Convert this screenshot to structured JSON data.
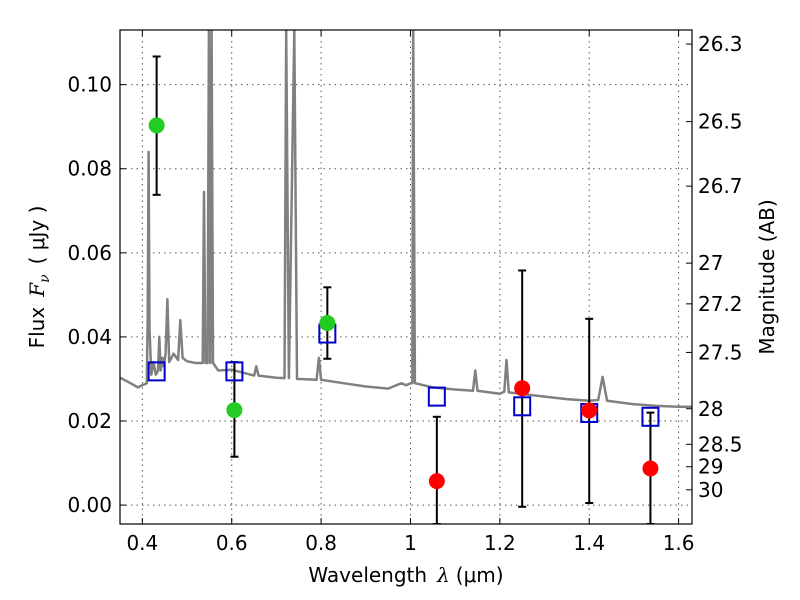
{
  "chart_data": {
    "type": "scatter",
    "xlabel_prefix": "Wavelength",
    "xlabel_unit": "(μm)",
    "ylabel_left_prefix": "Flux",
    "ylabel_left_unit": "( μJy )",
    "ylabel_right": "Magnitude (AB)",
    "xlim": [
      0.35,
      1.63
    ],
    "ylim": [
      -0.0045,
      0.113
    ],
    "x_ticks": [
      0.4,
      0.6,
      0.8,
      1.0,
      1.2,
      1.4,
      1.6
    ],
    "x_tick_labels": [
      "0.4",
      "0.6",
      "0.8",
      "1",
      "1.2",
      "1.4",
      "1.6"
    ],
    "y_ticks": [
      0.0,
      0.02,
      0.04,
      0.06,
      0.08,
      0.1
    ],
    "y_tick_labels": [
      "0.00",
      "0.02",
      "0.04",
      "0.06",
      "0.08",
      "0.10"
    ],
    "right_ticks": [
      {
        "label": "26.3",
        "mag": 26.3
      },
      {
        "label": "26.5",
        "mag": 26.5
      },
      {
        "label": "26.7",
        "mag": 26.7
      },
      {
        "label": "27",
        "mag": 27.0
      },
      {
        "label": "27.2",
        "mag": 27.2
      },
      {
        "label": "27.5",
        "mag": 27.5
      },
      {
        "label": "28",
        "mag": 28.0
      },
      {
        "label": "28.5",
        "mag": 28.5
      },
      {
        "label": "29",
        "mag": 29.0
      },
      {
        "label": "30",
        "mag": 30.0
      }
    ],
    "grid": true,
    "colors": {
      "spectrum": "#808080",
      "detection": "#22cc22",
      "upper": "#ff0000",
      "model": "#0000cc",
      "errorbar": "#000000"
    },
    "observed_points": [
      {
        "x": 0.432,
        "y": 0.0903,
        "err_low": 0.0738,
        "err_high": 0.1067,
        "kind": "detection"
      },
      {
        "x": 0.606,
        "y": 0.0226,
        "err_low": 0.0115,
        "err_high": 0.034,
        "kind": "detection"
      },
      {
        "x": 0.814,
        "y": 0.0433,
        "err_low": 0.0348,
        "err_high": 0.0518,
        "kind": "detection"
      },
      {
        "x": 1.059,
        "y": 0.0057,
        "err_low": -0.0045,
        "err_high": 0.021,
        "kind": "upper"
      },
      {
        "x": 1.25,
        "y": 0.0278,
        "err_low": -0.0004,
        "err_high": 0.0558,
        "kind": "upper"
      },
      {
        "x": 1.4,
        "y": 0.0225,
        "err_low": 0.0005,
        "err_high": 0.0443,
        "kind": "upper"
      },
      {
        "x": 1.537,
        "y": 0.0087,
        "err_low": -0.0045,
        "err_high": 0.022,
        "kind": "upper"
      }
    ],
    "model_points": [
      {
        "x": 0.432,
        "y": 0.0318
      },
      {
        "x": 0.606,
        "y": 0.0318
      },
      {
        "x": 0.814,
        "y": 0.0408
      },
      {
        "x": 1.059,
        "y": 0.0258
      },
      {
        "x": 1.25,
        "y": 0.0235
      },
      {
        "x": 1.4,
        "y": 0.0219
      },
      {
        "x": 1.537,
        "y": 0.021
      }
    ],
    "spectrum": [
      [
        0.35,
        0.0303
      ],
      [
        0.37,
        0.0292
      ],
      [
        0.39,
        0.028
      ],
      [
        0.4,
        0.0285
      ],
      [
        0.41,
        0.029
      ],
      [
        0.412,
        0.045
      ],
      [
        0.414,
        0.084
      ],
      [
        0.416,
        0.042
      ],
      [
        0.42,
        0.031
      ],
      [
        0.425,
        0.034
      ],
      [
        0.43,
        0.031
      ],
      [
        0.435,
        0.032
      ],
      [
        0.438,
        0.04
      ],
      [
        0.441,
        0.032
      ],
      [
        0.445,
        0.035
      ],
      [
        0.448,
        0.033
      ],
      [
        0.452,
        0.036
      ],
      [
        0.456,
        0.049
      ],
      [
        0.46,
        0.034
      ],
      [
        0.47,
        0.036
      ],
      [
        0.48,
        0.0345
      ],
      [
        0.485,
        0.044
      ],
      [
        0.49,
        0.035
      ],
      [
        0.5,
        0.0342
      ],
      [
        0.52,
        0.0338
      ],
      [
        0.535,
        0.0338
      ],
      [
        0.538,
        0.0745
      ],
      [
        0.541,
        0.0338
      ],
      [
        0.546,
        0.0338
      ],
      [
        0.549,
        0.113
      ],
      [
        0.552,
        0.0338
      ],
      [
        0.555,
        0.113
      ],
      [
        0.558,
        0.0338
      ],
      [
        0.57,
        0.032
      ],
      [
        0.6,
        0.0322
      ],
      [
        0.65,
        0.0308
      ],
      [
        0.655,
        0.033
      ],
      [
        0.66,
        0.0308
      ],
      [
        0.7,
        0.0303
      ],
      [
        0.718,
        0.0302
      ],
      [
        0.722,
        0.113
      ],
      [
        0.728,
        0.0302
      ],
      [
        0.74,
        0.113
      ],
      [
        0.746,
        0.03
      ],
      [
        0.75,
        0.03
      ],
      [
        0.79,
        0.0298
      ],
      [
        0.795,
        0.035
      ],
      [
        0.8,
        0.0298
      ],
      [
        0.85,
        0.029
      ],
      [
        0.9,
        0.0282
      ],
      [
        0.95,
        0.0277
      ],
      [
        0.98,
        0.029
      ],
      [
        0.99,
        0.0285
      ],
      [
        1.0,
        0.029
      ],
      [
        1.004,
        0.029
      ],
      [
        1.006,
        0.113
      ],
      [
        1.01,
        0.029
      ],
      [
        1.05,
        0.028
      ],
      [
        1.1,
        0.0275
      ],
      [
        1.14,
        0.0272
      ],
      [
        1.145,
        0.032
      ],
      [
        1.15,
        0.0272
      ],
      [
        1.2,
        0.0265
      ],
      [
        1.21,
        0.027
      ],
      [
        1.215,
        0.0345
      ],
      [
        1.22,
        0.0268
      ],
      [
        1.3,
        0.0258
      ],
      [
        1.35,
        0.0252
      ],
      [
        1.4,
        0.0248
      ],
      [
        1.42,
        0.025
      ],
      [
        1.43,
        0.0305
      ],
      [
        1.44,
        0.0248
      ],
      [
        1.5,
        0.024
      ],
      [
        1.55,
        0.0236
      ],
      [
        1.6,
        0.0234
      ],
      [
        1.63,
        0.0234
      ]
    ]
  }
}
